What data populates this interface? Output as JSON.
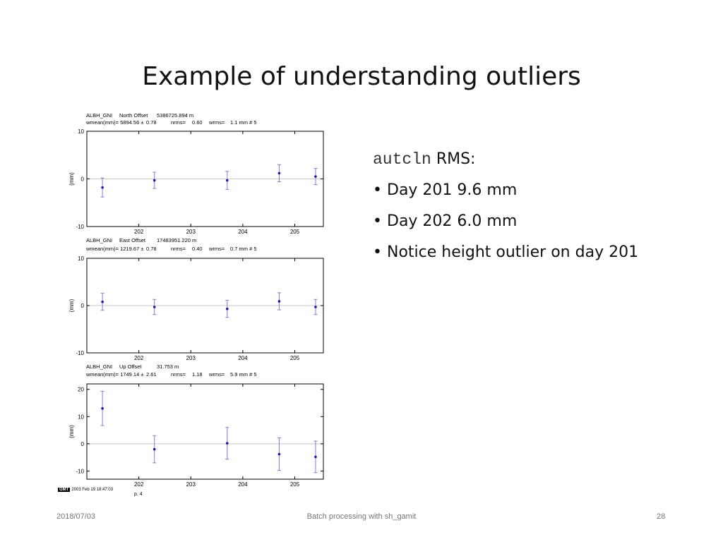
{
  "slide": {
    "title": "Example of understanding outliers",
    "bullets": {
      "heading_code": "autcln",
      "heading_text": " RMS:",
      "items": [
        "Day 201  9.6 mm",
        "Day 202  6.0 mm",
        "Notice height outlier on day 201"
      ]
    },
    "footer": {
      "date": "2018/07/03",
      "center": "Batch processing with sh_gamit",
      "page": "28"
    },
    "gmt_stamp": {
      "logo": "GMT",
      "text": "2003 Feb 19 18:47:03"
    },
    "plot_label": "p. 4"
  },
  "colors": {
    "marker": "#1a1aa8",
    "errorbar": "#8080d0",
    "zero_line": "#c8c8c8"
  },
  "chart_data": [
    {
      "type": "scatter",
      "header_line1": [
        "ALBH_GNI",
        "North Offset",
        "5386725.894 m"
      ],
      "header_line2": [
        "wmean(mm)= 5894.56 ±",
        "0.78",
        "nrms=",
        "0.60",
        "wrms=",
        "1.1 mm # 5"
      ],
      "ylabel": "(mm)",
      "ylim": [
        -10,
        10
      ],
      "yticks": [
        10,
        0,
        -10
      ],
      "xlim": [
        201.0,
        205.55
      ],
      "xticks": [
        202,
        203,
        204,
        205
      ],
      "x": [
        201.3,
        202.3,
        203.7,
        204.7,
        205.4
      ],
      "y": [
        -1.8,
        -0.3,
        -0.3,
        1.2,
        0.5
      ],
      "err": [
        2.0,
        1.7,
        1.9,
        1.8,
        1.7
      ]
    },
    {
      "type": "scatter",
      "header_line1": [
        "ALBH_GNI",
        "East Offset",
        "17483951.220 m"
      ],
      "header_line2": [
        "wmean(mm)= 1219.67 ±",
        "0.78",
        "nrms=",
        "0.40",
        "wrms=",
        "0.7 mm # 5"
      ],
      "ylabel": "(mm)",
      "ylim": [
        -10,
        10
      ],
      "yticks": [
        10,
        0,
        -10
      ],
      "xlim": [
        201.0,
        205.55
      ],
      "xticks": [
        202,
        203,
        204,
        205
      ],
      "x": [
        201.3,
        202.3,
        203.7,
        204.7,
        205.4
      ],
      "y": [
        0.8,
        -0.3,
        -0.7,
        0.9,
        -0.3
      ],
      "err": [
        1.8,
        1.6,
        1.8,
        1.8,
        1.6
      ]
    },
    {
      "type": "scatter",
      "header_line1": [
        "ALBH_GNI",
        "Up Offset",
        "31.753 m"
      ],
      "header_line2": [
        "wmean(mm)= 1749.14 ±",
        "2.61",
        "nrms=",
        "1.18",
        "wrms=",
        "5.9 mm # 5"
      ],
      "ylabel": "(mm)",
      "ylim": [
        -13,
        22
      ],
      "yticks": [
        20,
        10,
        0,
        -10
      ],
      "xlim": [
        201.0,
        205.55
      ],
      "xticks": [
        202,
        203,
        204,
        205
      ],
      "x": [
        201.3,
        202.3,
        203.7,
        204.7,
        205.4
      ],
      "y": [
        13.0,
        -2.0,
        0.2,
        -3.8,
        -4.8
      ],
      "err": [
        6.3,
        5.0,
        5.8,
        6.0,
        5.8
      ]
    }
  ]
}
